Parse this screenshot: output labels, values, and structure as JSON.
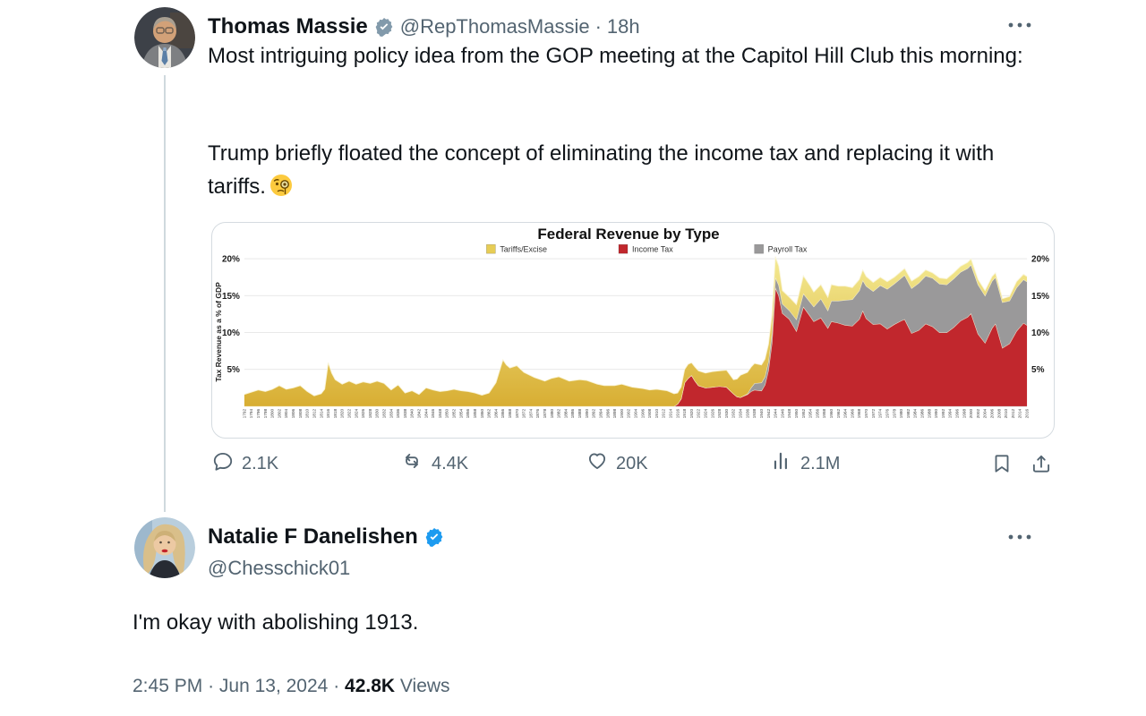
{
  "separator": "·",
  "tweet": {
    "author": {
      "name": "Thomas Massie",
      "badge": "verified-gray",
      "badge_color": "#829aab",
      "handle": "@RepThomasMassie",
      "time": "18h"
    },
    "text1": "Most intriguing policy idea from the GOP meeting at the Capitol Hill Club this morning:",
    "text2": "Trump briefly floated the concept of eliminating the income tax and replacing it with tariffs.",
    "emoji": "🧐",
    "actions": {
      "replies": "2.1K",
      "reposts": "4.4K",
      "likes": "20K",
      "views": "2.1M"
    }
  },
  "reply": {
    "author": {
      "name": "Natalie F Danelishen",
      "badge": "verified-blue",
      "badge_color": "#1d9bf0",
      "handle": "@Chesschick01"
    },
    "text": "I'm okay with abolishing 1913.",
    "meta": {
      "time": "2:45 PM",
      "date": "Jun 13, 2024",
      "views_count": "42.8K",
      "views_label": "Views"
    }
  },
  "chart_data": {
    "type": "area",
    "stacked": true,
    "title": "Federal Revenue by Type",
    "ylabel": "Tax Revenue as a % of GDP",
    "ylim": [
      0,
      21
    ],
    "y_ticks": [
      5,
      10,
      15,
      20
    ],
    "y_tick_suffix": "%",
    "x_range": [
      1792,
      2016
    ],
    "x_tick_step": 2,
    "grid": true,
    "legend_position": "top",
    "series": [
      {
        "name": "Tariffs/Excise",
        "color": "#e7cd55",
        "color_top": "#f4ea92",
        "color_bottom": "#d8ae33"
      },
      {
        "name": "Income Tax",
        "color": "#c1272d"
      },
      {
        "name": "Payroll Tax",
        "color": "#9a999a"
      }
    ],
    "stack_order_bottom_to_top": [
      "Income Tax",
      "Payroll Tax",
      "Tariffs/Excise"
    ],
    "points_format": [
      "year",
      "Tariffs/Excise",
      "Income Tax",
      "Payroll Tax"
    ],
    "points": [
      [
        1792,
        1.6,
        0,
        0
      ],
      [
        1794,
        1.9,
        0,
        0
      ],
      [
        1796,
        2.2,
        0,
        0
      ],
      [
        1798,
        2.0,
        0,
        0
      ],
      [
        1800,
        2.3,
        0,
        0
      ],
      [
        1802,
        2.8,
        0,
        0
      ],
      [
        1804,
        2.3,
        0,
        0
      ],
      [
        1806,
        2.5,
        0,
        0
      ],
      [
        1808,
        2.8,
        0,
        0
      ],
      [
        1810,
        2.0,
        0,
        0
      ],
      [
        1812,
        1.4,
        0,
        0
      ],
      [
        1814,
        1.7,
        0,
        0
      ],
      [
        1815,
        2.3,
        0,
        0
      ],
      [
        1816,
        5.9,
        0,
        0
      ],
      [
        1817,
        4.5,
        0,
        0
      ],
      [
        1818,
        3.6,
        0,
        0
      ],
      [
        1820,
        3.0,
        0,
        0
      ],
      [
        1822,
        3.4,
        0,
        0
      ],
      [
        1824,
        3.0,
        0,
        0
      ],
      [
        1826,
        3.3,
        0,
        0
      ],
      [
        1828,
        3.1,
        0,
        0
      ],
      [
        1830,
        3.4,
        0,
        0
      ],
      [
        1832,
        3.1,
        0,
        0
      ],
      [
        1834,
        2.2,
        0,
        0
      ],
      [
        1836,
        2.9,
        0,
        0
      ],
      [
        1838,
        1.8,
        0,
        0
      ],
      [
        1840,
        2.1,
        0,
        0
      ],
      [
        1842,
        1.6,
        0,
        0
      ],
      [
        1844,
        2.5,
        0,
        0
      ],
      [
        1846,
        2.2,
        0,
        0
      ],
      [
        1848,
        2.0,
        0,
        0
      ],
      [
        1850,
        2.1,
        0,
        0
      ],
      [
        1852,
        2.3,
        0,
        0
      ],
      [
        1854,
        2.1,
        0,
        0
      ],
      [
        1856,
        2.0,
        0,
        0
      ],
      [
        1858,
        1.8,
        0,
        0
      ],
      [
        1860,
        1.5,
        0,
        0
      ],
      [
        1862,
        1.8,
        0,
        0
      ],
      [
        1864,
        3.2,
        0,
        0
      ],
      [
        1866,
        6.3,
        0,
        0
      ],
      [
        1867,
        5.6,
        0,
        0
      ],
      [
        1868,
        5.2,
        0,
        0
      ],
      [
        1870,
        5.5,
        0,
        0
      ],
      [
        1872,
        4.6,
        0,
        0
      ],
      [
        1875,
        3.9,
        0,
        0
      ],
      [
        1878,
        3.4,
        0,
        0
      ],
      [
        1880,
        3.8,
        0,
        0
      ],
      [
        1882,
        4.0,
        0,
        0
      ],
      [
        1885,
        3.4,
        0,
        0
      ],
      [
        1888,
        3.6,
        0,
        0
      ],
      [
        1890,
        3.5,
        0,
        0
      ],
      [
        1893,
        3.0,
        0,
        0
      ],
      [
        1895,
        2.8,
        0,
        0
      ],
      [
        1898,
        2.8,
        0,
        0
      ],
      [
        1900,
        3.0,
        0,
        0
      ],
      [
        1903,
        2.6,
        0,
        0
      ],
      [
        1906,
        2.4,
        0,
        0
      ],
      [
        1908,
        2.2,
        0,
        0
      ],
      [
        1910,
        2.3,
        0,
        0
      ],
      [
        1913,
        2.1,
        0,
        0
      ],
      [
        1915,
        1.7,
        0,
        0
      ],
      [
        1916,
        1.5,
        0.3,
        0
      ],
      [
        1917,
        1.6,
        1.0,
        0
      ],
      [
        1918,
        1.8,
        3.2,
        0
      ],
      [
        1919,
        1.9,
        3.8,
        0
      ],
      [
        1920,
        1.7,
        4.2,
        0
      ],
      [
        1921,
        1.9,
        3.4,
        0
      ],
      [
        1922,
        2.0,
        2.8,
        0
      ],
      [
        1924,
        2.0,
        2.5,
        0
      ],
      [
        1926,
        2.1,
        2.6,
        0
      ],
      [
        1928,
        2.1,
        2.7,
        0
      ],
      [
        1930,
        2.3,
        2.6,
        0
      ],
      [
        1932,
        1.9,
        1.7,
        0
      ],
      [
        1933,
        2.4,
        1.3,
        0
      ],
      [
        1934,
        3.0,
        1.2,
        0
      ],
      [
        1936,
        2.9,
        1.6,
        0.1
      ],
      [
        1937,
        2.8,
        2.0,
        0.5
      ],
      [
        1938,
        2.7,
        2.2,
        0.9
      ],
      [
        1940,
        2.4,
        2.1,
        1.1
      ],
      [
        1941,
        2.4,
        2.9,
        1.1
      ],
      [
        1942,
        2.3,
        4.9,
        1.2
      ],
      [
        1943,
        2.4,
        8.6,
        1.3
      ],
      [
        1944,
        2.8,
        16.1,
        1.4
      ],
      [
        1945,
        2.6,
        15.0,
        1.4
      ],
      [
        1946,
        1.8,
        12.6,
        1.3
      ],
      [
        1948,
        1.8,
        11.8,
        1.2
      ],
      [
        1950,
        2.0,
        10.2,
        1.6
      ],
      [
        1952,
        2.4,
        13.5,
        1.8
      ],
      [
        1954,
        2.2,
        12.2,
        1.9
      ],
      [
        1955,
        2.0,
        11.5,
        2.0
      ],
      [
        1957,
        1.9,
        12.0,
        2.6
      ],
      [
        1959,
        1.8,
        10.6,
        2.4
      ],
      [
        1960,
        2.2,
        11.5,
        2.8
      ],
      [
        1962,
        2.0,
        11.3,
        3.0
      ],
      [
        1964,
        1.9,
        11.0,
        3.4
      ],
      [
        1966,
        1.6,
        10.9,
        3.6
      ],
      [
        1968,
        1.5,
        11.8,
        3.9
      ],
      [
        1969,
        1.4,
        13.0,
        4.1
      ],
      [
        1970,
        1.3,
        11.9,
        4.4
      ],
      [
        1972,
        1.2,
        11.1,
        4.5
      ],
      [
        1974,
        1.1,
        11.2,
        5.2
      ],
      [
        1976,
        1.0,
        10.5,
        5.4
      ],
      [
        1978,
        0.9,
        11.1,
        5.5
      ],
      [
        1980,
        0.9,
        11.6,
        5.8
      ],
      [
        1981,
        0.9,
        11.8,
        6.0
      ],
      [
        1983,
        1.0,
        9.9,
        6.1
      ],
      [
        1985,
        0.9,
        10.3,
        6.4
      ],
      [
        1987,
        0.8,
        11.2,
        6.5
      ],
      [
        1989,
        0.7,
        10.8,
        6.6
      ],
      [
        1991,
        0.8,
        10.0,
        6.6
      ],
      [
        1993,
        0.8,
        10.0,
        6.5
      ],
      [
        1995,
        0.8,
        10.7,
        6.6
      ],
      [
        1997,
        0.8,
        11.6,
        6.6
      ],
      [
        1999,
        0.8,
        12.1,
        6.6
      ],
      [
        2000,
        0.8,
        12.6,
        6.6
      ],
      [
        2002,
        0.7,
        9.8,
        6.7
      ],
      [
        2004,
        0.7,
        8.6,
        6.4
      ],
      [
        2006,
        0.6,
        10.6,
        6.4
      ],
      [
        2007,
        0.6,
        11.2,
        6.3
      ],
      [
        2009,
        0.5,
        7.9,
        6.2
      ],
      [
        2011,
        0.6,
        8.5,
        5.8
      ],
      [
        2013,
        0.8,
        10.2,
        5.9
      ],
      [
        2015,
        0.7,
        11.3,
        5.9
      ],
      [
        2016,
        0.7,
        11.0,
        5.9
      ]
    ]
  }
}
